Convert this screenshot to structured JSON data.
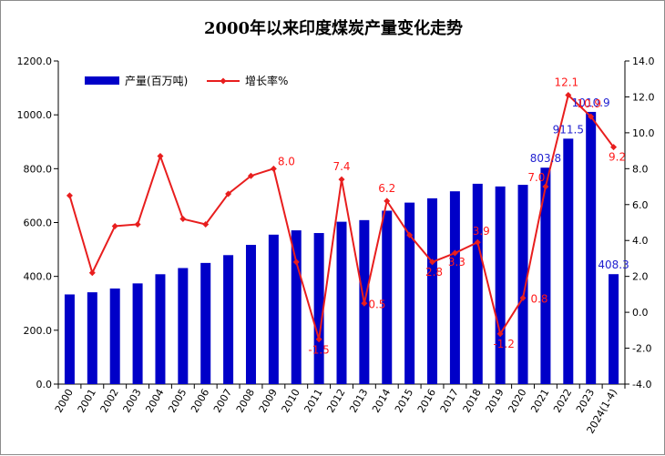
{
  "chart_data": {
    "type": "bar",
    "title": "2000年以来印度煤炭产量变化走势",
    "categories": [
      "2000",
      "2001",
      "2002",
      "2003",
      "2004",
      "2005",
      "2006",
      "2007",
      "2008",
      "2009",
      "2010",
      "2011",
      "2012",
      "2013",
      "2014",
      "2015",
      "2016",
      "2017",
      "2018",
      "2019",
      "2020",
      "2021",
      "2022",
      "2023",
      "2024(1-4)"
    ],
    "series": [
      {
        "name": "产量(百万吨)",
        "type": "bar",
        "axis": "left",
        "color": "#0000c8",
        "values": [
          333,
          341,
          355,
          374,
          408,
          431,
          450,
          479,
          517,
          555,
          571,
          561,
          603,
          609,
          644,
          674,
          690,
          716,
          744,
          734,
          740,
          803.8,
          911.5,
          1010.9,
          408.3
        ]
      },
      {
        "name": "增长率%",
        "type": "line",
        "axis": "right",
        "color": "#e81e1e",
        "values": [
          6.5,
          2.2,
          4.8,
          4.9,
          8.7,
          5.2,
          4.9,
          6.6,
          7.6,
          8.0,
          2.8,
          -1.5,
          7.4,
          0.5,
          6.2,
          4.3,
          2.8,
          3.3,
          3.9,
          -1.2,
          0.8,
          7.0,
          12.1,
          10.9,
          9.2
        ]
      }
    ],
    "bar_labels": [
      {
        "index": 21,
        "text": "803.8"
      },
      {
        "index": 22,
        "text": "911.5"
      },
      {
        "index": 23,
        "text": "1010.9"
      },
      {
        "index": 24,
        "text": "408.3"
      }
    ],
    "rate_labels": [
      {
        "index": 9,
        "text": "8.0"
      },
      {
        "index": 11,
        "text": "-1.5"
      },
      {
        "index": 12,
        "text": "7.4"
      },
      {
        "index": 13,
        "text": "0.5"
      },
      {
        "index": 14,
        "text": "6.2"
      },
      {
        "index": 16,
        "text": "2.8"
      },
      {
        "index": 17,
        "text": "3.3"
      },
      {
        "index": 18,
        "text": "3.9"
      },
      {
        "index": 19,
        "text": "-1.2"
      },
      {
        "index": 20,
        "text": "0.8"
      },
      {
        "index": 21,
        "text": "7.0"
      },
      {
        "index": 22,
        "text": "12.1"
      },
      {
        "index": 23,
        "text": "10.9"
      },
      {
        "index": 24,
        "text": "9.2"
      }
    ],
    "y_left": {
      "min": 0,
      "max": 1200,
      "step": 200,
      "tick_labels": [
        "0.0",
        "200.0",
        "400.0",
        "600.0",
        "800.0",
        "1000.0",
        "1200.0"
      ]
    },
    "y_right": {
      "min": -4,
      "max": 14,
      "step": 2,
      "tick_labels": [
        "-4.0",
        "-2.0",
        "0.0",
        "2.0",
        "4.0",
        "6.0",
        "8.0",
        "10.0",
        "12.0",
        "14.0"
      ]
    },
    "grid": false,
    "legend_position": "top-left"
  }
}
